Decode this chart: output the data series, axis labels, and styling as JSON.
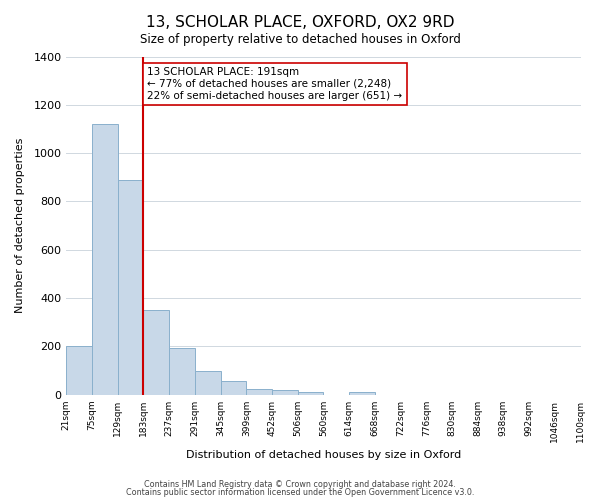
{
  "title": "13, SCHOLAR PLACE, OXFORD, OX2 9RD",
  "subtitle": "Size of property relative to detached houses in Oxford",
  "xlabel": "Distribution of detached houses by size in Oxford",
  "ylabel": "Number of detached properties",
  "bin_labels": [
    "21sqm",
    "75sqm",
    "129sqm",
    "183sqm",
    "237sqm",
    "291sqm",
    "345sqm",
    "399sqm",
    "452sqm",
    "506sqm",
    "560sqm",
    "614sqm",
    "668sqm",
    "722sqm",
    "776sqm",
    "830sqm",
    "884sqm",
    "938sqm",
    "992sqm",
    "1046sqm",
    "1100sqm"
  ],
  "bar_heights": [
    200,
    1120,
    890,
    350,
    195,
    100,
    55,
    25,
    18,
    10,
    0,
    12,
    0,
    0,
    0,
    0,
    0,
    0,
    0,
    0
  ],
  "bar_color": "#c8d8e8",
  "bar_edge_color": "#8ab0cc",
  "property_line_x": 3,
  "property_line_color": "#cc0000",
  "annotation_text": "13 SCHOLAR PLACE: 191sqm\n← 77% of detached houses are smaller (2,248)\n22% of semi-detached houses are larger (651) →",
  "annotation_box_color": "#ffffff",
  "annotation_box_edge": "#cc0000",
  "ylim": [
    0,
    1400
  ],
  "yticks": [
    0,
    200,
    400,
    600,
    800,
    1000,
    1200,
    1400
  ],
  "footer_line1": "Contains HM Land Registry data © Crown copyright and database right 2024.",
  "footer_line2": "Contains public sector information licensed under the Open Government Licence v3.0.",
  "background_color": "#ffffff",
  "grid_color": "#d0d8e0"
}
